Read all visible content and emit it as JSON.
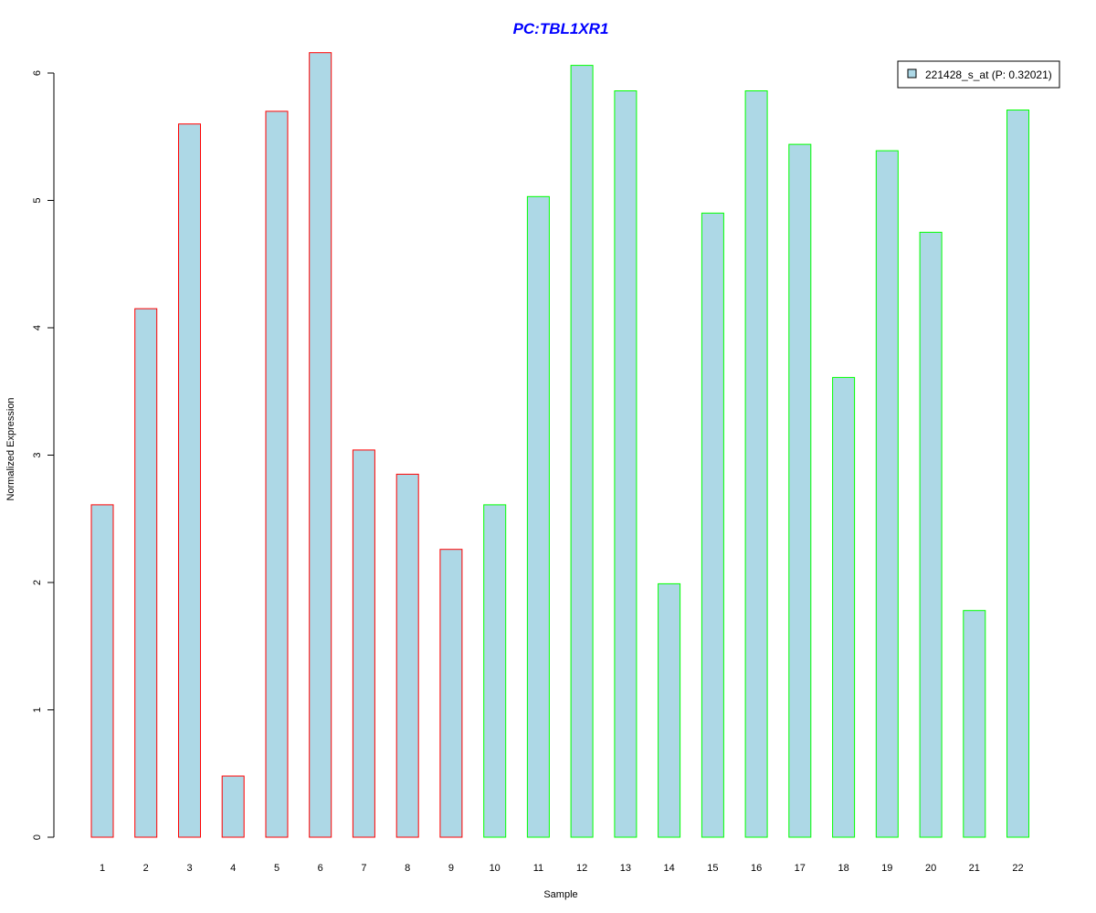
{
  "chart_data": {
    "type": "bar",
    "title": "PC:TBL1XR1",
    "xlabel": "Sample",
    "ylabel": "Normalized Expression",
    "ylim": [
      0,
      6.2
    ],
    "yticks": [
      0,
      1,
      2,
      3,
      4,
      5,
      6
    ],
    "ytick_labels": [
      "0",
      "1",
      "2",
      "3",
      "4",
      "5",
      "6"
    ],
    "categories": [
      "1",
      "2",
      "3",
      "4",
      "5",
      "6",
      "7",
      "8",
      "9",
      "10",
      "11",
      "12",
      "13",
      "14",
      "15",
      "16",
      "17",
      "18",
      "19",
      "20",
      "21",
      "22"
    ],
    "values": [
      2.61,
      4.15,
      5.6,
      0.48,
      5.7,
      6.16,
      3.04,
      2.85,
      2.26,
      2.61,
      5.03,
      6.06,
      5.86,
      1.99,
      4.9,
      5.86,
      5.44,
      3.61,
      5.39,
      4.75,
      1.78,
      5.71
    ],
    "bar_fill": "#add8e6",
    "bar_border_colors": [
      "#ff0000",
      "#ff0000",
      "#ff0000",
      "#ff0000",
      "#ff0000",
      "#ff0000",
      "#ff0000",
      "#ff0000",
      "#ff0000",
      "#00ff00",
      "#00ff00",
      "#00ff00",
      "#00ff00",
      "#00ff00",
      "#00ff00",
      "#00ff00",
      "#00ff00",
      "#00ff00",
      "#00ff00",
      "#00ff00",
      "#00ff00",
      "#00ff00"
    ],
    "title_color": "#0000ff",
    "legend": {
      "position": "top-right",
      "entries": [
        {
          "label": "221428_s_at (P: 0.32021)",
          "color": "#add8e6"
        }
      ]
    },
    "grid": false
  }
}
